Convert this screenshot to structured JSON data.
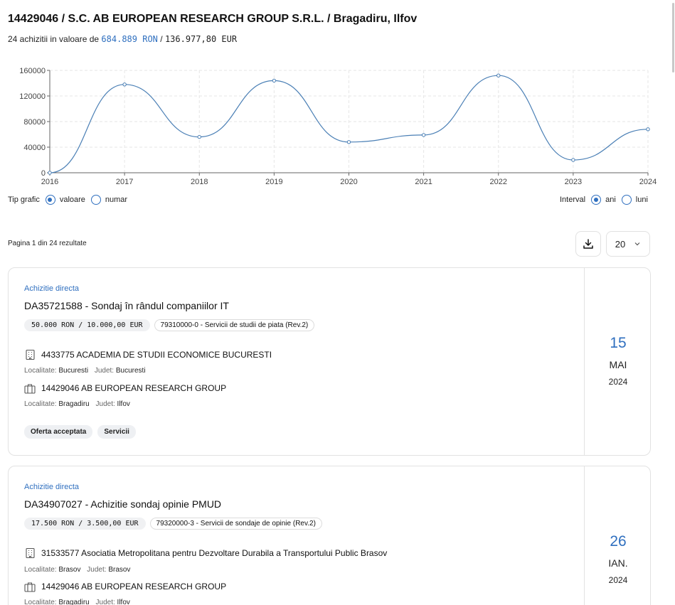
{
  "header": {
    "title": "14429046 / S.C. AB EUROPEAN RESEARCH GROUP S.R.L. / Bragadiru, Ilfov",
    "count_text": "24 achizitii in valoare de",
    "value_ron": "684.889 RON",
    "separator": "/",
    "value_eur": "136.977,80 EUR"
  },
  "chart_data": {
    "type": "line",
    "x": [
      "2016",
      "2017",
      "2018",
      "2019",
      "2020",
      "2021",
      "2022",
      "2023",
      "2024"
    ],
    "values": [
      0,
      138000,
      56000,
      144000,
      48000,
      59000,
      152000,
      20000,
      68000
    ],
    "yticks": [
      "0",
      "40000",
      "80000",
      "120000",
      "160000"
    ],
    "ylim": [
      0,
      160000
    ],
    "grid": true,
    "color": "#4a7fb5"
  },
  "controls": {
    "tip_grafic_label": "Tip grafic",
    "option_valoare": "valoare",
    "option_numar": "numar",
    "interval_label": "Interval",
    "option_ani": "ani",
    "option_luni": "luni"
  },
  "pagination": {
    "summary": "Pagina 1 din 24 rezultate",
    "page_size": "20"
  },
  "results": [
    {
      "type": "Achizitie directa",
      "title": "DA35721588 - Sondaj în rândul companiilor IT",
      "value": "50.000 RON / 10.000,00 EUR",
      "cpv": "79310000-0 - Servicii de studii de piata (Rev.2)",
      "authority": "4433775 ACADEMIA DE STUDII ECONOMICE BUCURESTI",
      "authority_localitate": "Bucuresti",
      "authority_judet": "Bucuresti",
      "supplier": "14429046 AB EUROPEAN RESEARCH GROUP",
      "supplier_localitate": "Bragadiru",
      "supplier_judet": "Ilfov",
      "tags": [
        "Oferta acceptata",
        "Servicii"
      ],
      "day": "15",
      "month": "MAI",
      "year": "2024"
    },
    {
      "type": "Achizitie directa",
      "title": "DA34907027 - Achizitie sondaj opinie PMUD",
      "value": "17.500 RON / 3.500,00 EUR",
      "cpv": "79320000-3 - Servicii de sondaje de opinie (Rev.2)",
      "authority": "31533577 Asociatia Metropolitana pentru Dezvoltare Durabila a Transportului Public Brasov",
      "authority_localitate": "Brasov",
      "authority_judet": "Brasov",
      "supplier": "14429046 AB EUROPEAN RESEARCH GROUP",
      "supplier_localitate": "Bragadiru",
      "supplier_judet": "Ilfov",
      "day": "26",
      "month": "IAN.",
      "year": "2024"
    }
  ],
  "labels": {
    "localitate": "Localitate:",
    "judet": "Judet:"
  },
  "icons": {
    "building": "building-icon",
    "briefcase": "briefcase-icon",
    "download": "download-icon",
    "chevron": "chevron-down-icon"
  }
}
